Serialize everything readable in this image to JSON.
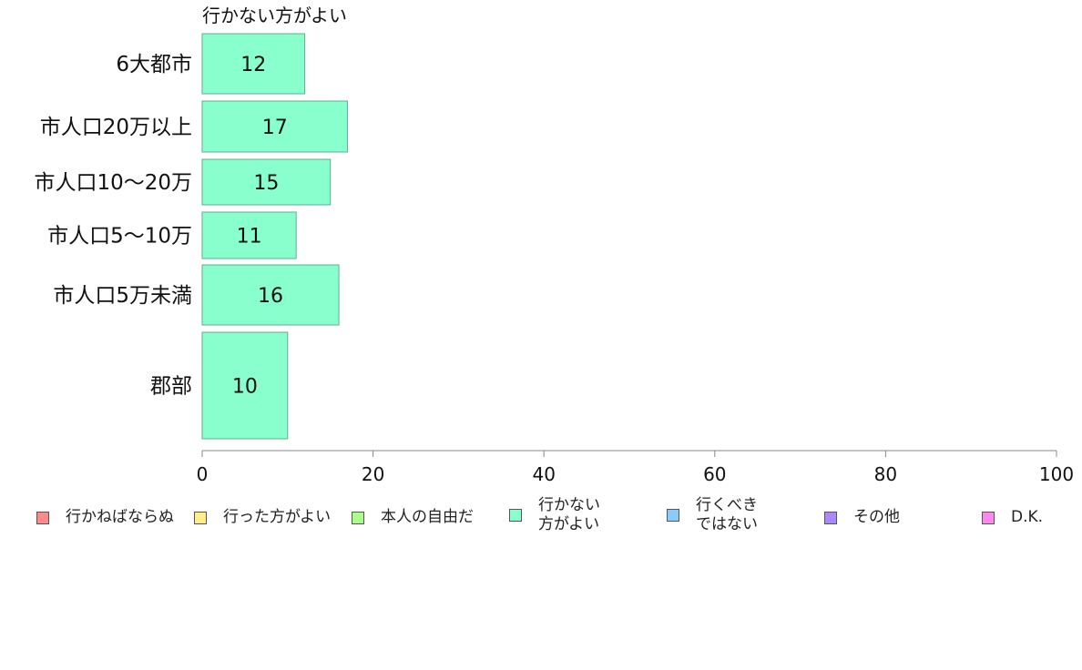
{
  "chart_data": {
    "type": "bar",
    "orientation": "horizontal",
    "title": "行かない方がよい",
    "categories": [
      "6大都市",
      "市人口20万以上",
      "市人口10〜20万",
      "市人口5〜10万",
      "市人口5万未満",
      "郡部"
    ],
    "series": [
      {
        "name": "行かない方がよい",
        "values": [
          12,
          17,
          15,
          11,
          16,
          10
        ],
        "color": "#88ffcc"
      }
    ],
    "xlim": [
      0,
      100
    ],
    "xticks": [
      0,
      20,
      40,
      60,
      80,
      100
    ],
    "grid": false,
    "legend_position": "bottom"
  },
  "legend": {
    "items": [
      {
        "label": "行かねばならぬ",
        "color": "#ff8888"
      },
      {
        "label": "行った方がよい",
        "color": "#ffee88"
      },
      {
        "label": "本人の自由だ",
        "color": "#aaff88"
      },
      {
        "label": "行かない\n方がよい",
        "color": "#88ffcc"
      },
      {
        "label": "行くべき\nではない",
        "color": "#88ccff"
      },
      {
        "label": "その他",
        "color": "#aa88ff"
      },
      {
        "label": "D.K.",
        "color": "#ff88ee"
      }
    ]
  }
}
